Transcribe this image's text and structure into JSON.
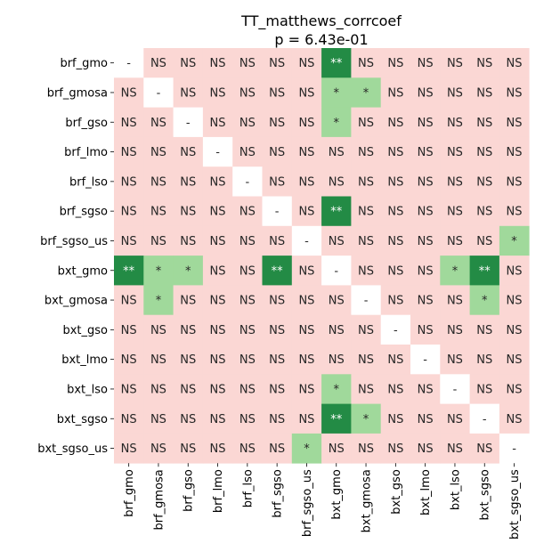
{
  "chart_data": {
    "type": "heatmap",
    "title": "TT_matthews_corrcoef",
    "subtitle": "p = 6.43e-01",
    "xlabel": "",
    "ylabel": "",
    "labels": [
      "brf_gmo",
      "brf_gmosa",
      "brf_gso",
      "brf_lmo",
      "brf_lso",
      "brf_sgso",
      "brf_sgso_us",
      "bxt_gmo",
      "bxt_gmosa",
      "bxt_gso",
      "bxt_lmo",
      "bxt_lso",
      "bxt_sgso",
      "bxt_sgso_us"
    ],
    "significance_colors": {
      "NS": "#fbd7d4",
      "*": "#a0d99b",
      "**": "#238b45",
      "-": "#ffffff"
    },
    "text_colors": {
      "NS": "#262626",
      "*": "#262626",
      "**": "#ffffff",
      "-": "#262626"
    },
    "matrix": [
      [
        "-",
        "NS",
        "NS",
        "NS",
        "NS",
        "NS",
        "NS",
        "**",
        "NS",
        "NS",
        "NS",
        "NS",
        "NS",
        "NS"
      ],
      [
        "NS",
        "-",
        "NS",
        "NS",
        "NS",
        "NS",
        "NS",
        "*",
        "*",
        "NS",
        "NS",
        "NS",
        "NS",
        "NS"
      ],
      [
        "NS",
        "NS",
        "-",
        "NS",
        "NS",
        "NS",
        "NS",
        "*",
        "NS",
        "NS",
        "NS",
        "NS",
        "NS",
        "NS"
      ],
      [
        "NS",
        "NS",
        "NS",
        "-",
        "NS",
        "NS",
        "NS",
        "NS",
        "NS",
        "NS",
        "NS",
        "NS",
        "NS",
        "NS"
      ],
      [
        "NS",
        "NS",
        "NS",
        "NS",
        "-",
        "NS",
        "NS",
        "NS",
        "NS",
        "NS",
        "NS",
        "NS",
        "NS",
        "NS"
      ],
      [
        "NS",
        "NS",
        "NS",
        "NS",
        "NS",
        "-",
        "NS",
        "**",
        "NS",
        "NS",
        "NS",
        "NS",
        "NS",
        "NS"
      ],
      [
        "NS",
        "NS",
        "NS",
        "NS",
        "NS",
        "NS",
        "-",
        "NS",
        "NS",
        "NS",
        "NS",
        "NS",
        "NS",
        "*"
      ],
      [
        "**",
        "*",
        "*",
        "NS",
        "NS",
        "**",
        "NS",
        "-",
        "NS",
        "NS",
        "NS",
        "*",
        "**",
        "NS"
      ],
      [
        "NS",
        "*",
        "NS",
        "NS",
        "NS",
        "NS",
        "NS",
        "NS",
        "-",
        "NS",
        "NS",
        "NS",
        "*",
        "NS"
      ],
      [
        "NS",
        "NS",
        "NS",
        "NS",
        "NS",
        "NS",
        "NS",
        "NS",
        "NS",
        "-",
        "NS",
        "NS",
        "NS",
        "NS"
      ],
      [
        "NS",
        "NS",
        "NS",
        "NS",
        "NS",
        "NS",
        "NS",
        "NS",
        "NS",
        "NS",
        "-",
        "NS",
        "NS",
        "NS"
      ],
      [
        "NS",
        "NS",
        "NS",
        "NS",
        "NS",
        "NS",
        "NS",
        "*",
        "NS",
        "NS",
        "NS",
        "-",
        "NS",
        "NS"
      ],
      [
        "NS",
        "NS",
        "NS",
        "NS",
        "NS",
        "NS",
        "NS",
        "**",
        "*",
        "NS",
        "NS",
        "NS",
        "-",
        "NS"
      ],
      [
        "NS",
        "NS",
        "NS",
        "NS",
        "NS",
        "NS",
        "*",
        "NS",
        "NS",
        "NS",
        "NS",
        "NS",
        "NS",
        "-"
      ]
    ]
  }
}
